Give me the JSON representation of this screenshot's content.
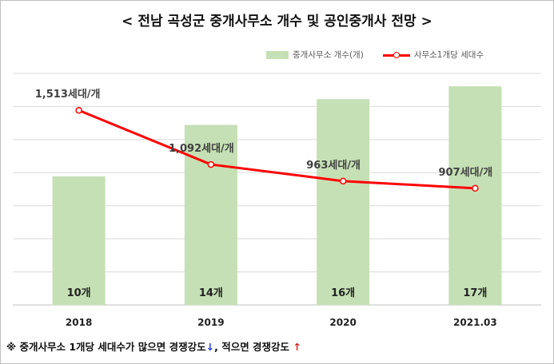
{
  "title": "< 전남 곡성군 중개사무소 개수 및 공인중개사 전망 >",
  "legend": {
    "bar_label": "중개사무소 개수(개)",
    "line_label": "사무소1개당 세대수"
  },
  "colors": {
    "bar": "#c5e0b4",
    "line": "#ff0000",
    "grid": "#d9d9d9",
    "down_arrow": "#1f3fd6",
    "up_arrow": "#e02020"
  },
  "chart_data": {
    "type": "bar",
    "categories": [
      "2018",
      "2019",
      "2020",
      "2021.03"
    ],
    "series": [
      {
        "name": "중개사무소 개수(개)",
        "type": "bar",
        "values": [
          10,
          14,
          16,
          17
        ],
        "data_labels": [
          "10개",
          "14개",
          "16개",
          "17개"
        ]
      },
      {
        "name": "사무소1개당 세대수",
        "type": "line",
        "values": [
          1513,
          1092,
          963,
          907
        ],
        "data_labels": [
          "1,513세대/개",
          "1,092세대/개",
          "963세대/개",
          "907세대/개"
        ]
      }
    ],
    "bar_axis_max": 18,
    "line_axis_range": [
      0,
      1800
    ],
    "gridlines": "horizontal",
    "legend_position": "top-right"
  },
  "footnote": {
    "part1": "※ 중개사무소 1개당 세대수가 많으면 경쟁강도",
    "arrow_down": "↓",
    "part2": ", 적으면 경쟁강도 ",
    "arrow_up": "↑"
  }
}
